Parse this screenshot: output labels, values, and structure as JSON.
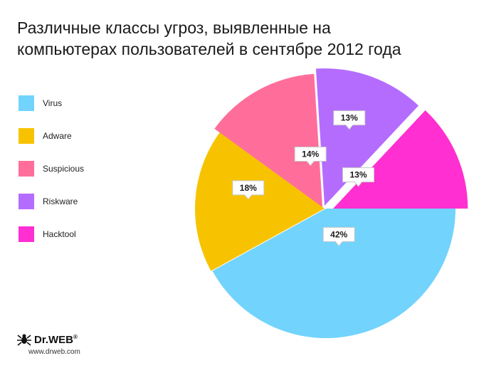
{
  "title_lines": [
    "Различные классы угроз, выявленные на",
    "компьютерах пользователей в сентябре 2012 года"
  ],
  "chart_data": {
    "type": "pie",
    "title": "Различные классы угроз, выявленные на компьютерах пользователей в сентябре 2012 года",
    "legend_position": "left",
    "slices": [
      {
        "label": "Virus",
        "value": 42,
        "display": "42%",
        "color": "#72d3fd"
      },
      {
        "label": "Adware",
        "value": 18,
        "display": "18%",
        "color": "#f7c300"
      },
      {
        "label": "Suspicious",
        "value": 14,
        "display": "14%",
        "color": "#ff6e9a"
      },
      {
        "label": "Riskware",
        "value": 13,
        "display": "13%",
        "color": "#b46cff"
      },
      {
        "label": "Hacktool",
        "value": 13,
        "display": "13%",
        "color": "#ff2fd1"
      }
    ]
  },
  "logo": {
    "name": "Dr.WEB",
    "mark": "®",
    "url": "www.drweb.com"
  }
}
